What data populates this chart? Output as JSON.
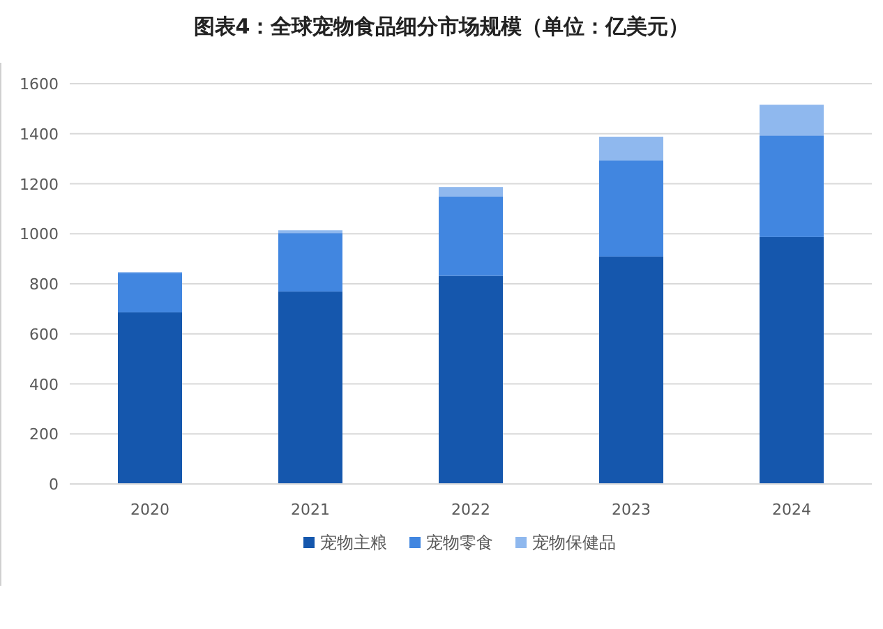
{
  "chart_data": {
    "type": "bar",
    "title": "图表4：全球宠物食品细分市场规模（单位：亿美元）",
    "stacked": true,
    "categories": [
      "2020",
      "2021",
      "2022",
      "2023",
      "2024"
    ],
    "series": [
      {
        "name": "宠物主粮",
        "color": "#1557ad",
        "values": [
          686,
          769,
          832,
          909,
          987
        ]
      },
      {
        "name": "宠物零食",
        "color": "#4186e0",
        "values": [
          158,
          234,
          318,
          384,
          406
        ]
      },
      {
        "name": "宠物保健品",
        "color": "#8fb8ee",
        "values": [
          3,
          11,
          37,
          95,
          123
        ]
      }
    ],
    "ylim": [
      0,
      1600
    ],
    "yticks": [
      0,
      200,
      400,
      600,
      800,
      1000,
      1200,
      1400,
      1600
    ],
    "grid": "y",
    "legend": "bottom"
  }
}
